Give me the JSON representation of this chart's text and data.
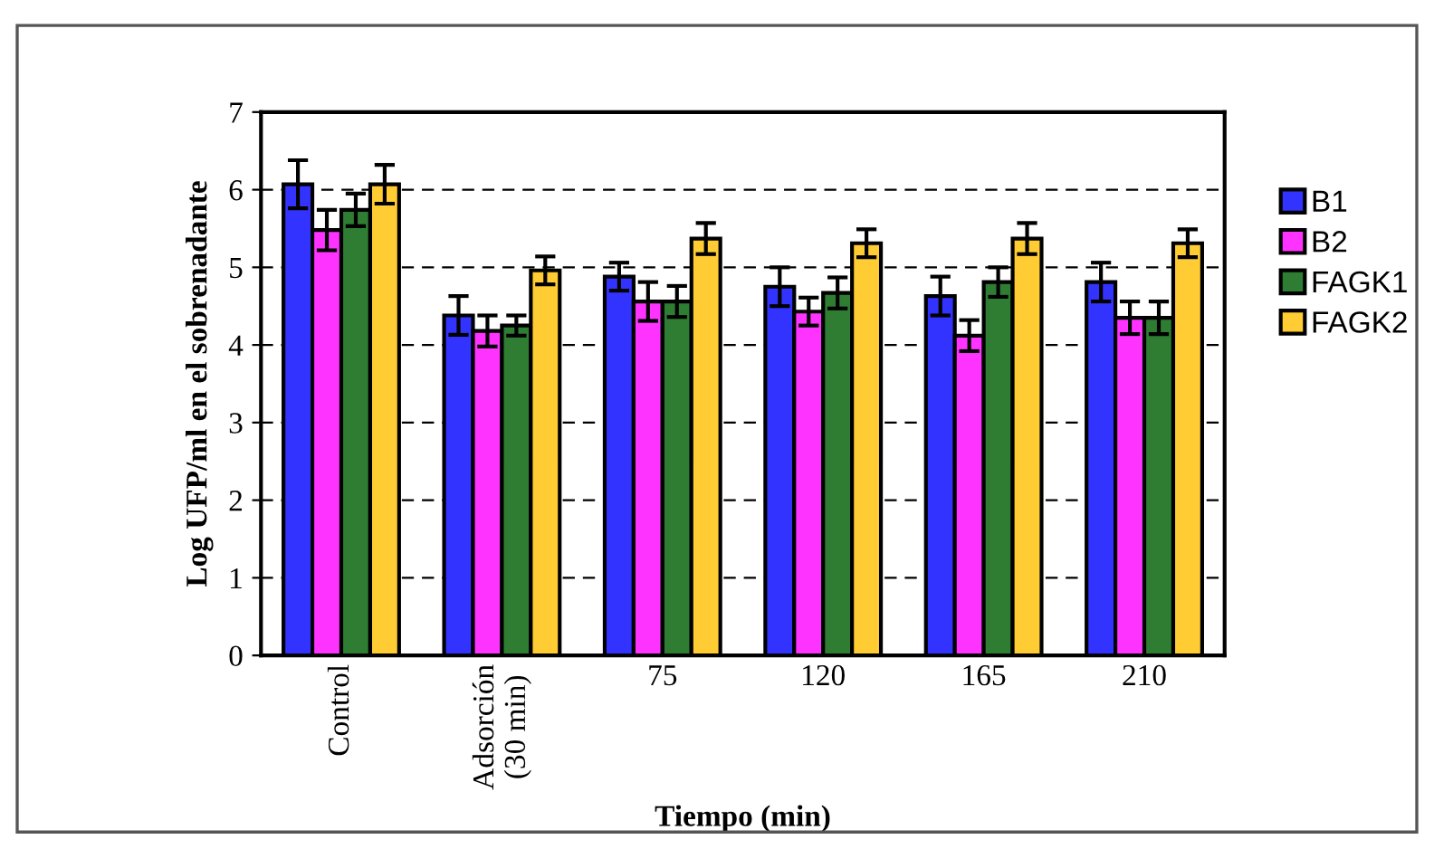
{
  "chart_data": {
    "type": "bar",
    "xlabel": "Tiempo (min)",
    "ylabel": "Log UFP/ml en el sobrenadante",
    "categories": [
      "Control",
      "Adsorción\n(30 min)",
      "75",
      "120",
      "165",
      "210"
    ],
    "series": [
      {
        "name": "B1",
        "color": "#3333ff",
        "values": [
          6.07,
          4.38,
          4.88,
          4.75,
          4.63,
          4.81
        ],
        "errors": [
          0.31,
          0.25,
          0.18,
          0.25,
          0.25,
          0.25
        ]
      },
      {
        "name": "B2",
        "color": "#ff33ff",
        "values": [
          5.48,
          4.18,
          4.56,
          4.43,
          4.12,
          4.35
        ],
        "errors": [
          0.26,
          0.2,
          0.25,
          0.18,
          0.2,
          0.21
        ]
      },
      {
        "name": "FAGK1",
        "color": "#2e7d32",
        "values": [
          5.74,
          4.25,
          4.56,
          4.67,
          4.81,
          4.35
        ],
        "errors": [
          0.21,
          0.13,
          0.2,
          0.2,
          0.19,
          0.21
        ]
      },
      {
        "name": "FAGK2",
        "color": "#ffcc33",
        "values": [
          6.07,
          4.96,
          5.37,
          5.31,
          5.37,
          5.31
        ],
        "errors": [
          0.25,
          0.18,
          0.2,
          0.18,
          0.2,
          0.18
        ]
      }
    ],
    "ylim": [
      0,
      7
    ],
    "yticks": [
      0,
      1,
      2,
      3,
      4,
      5,
      6,
      7
    ],
    "grid": "y",
    "legend": "right"
  }
}
